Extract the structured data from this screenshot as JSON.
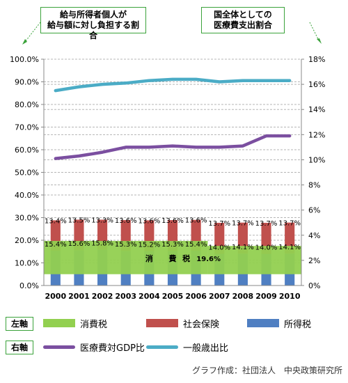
{
  "callouts": {
    "left": [
      "給与所得者個人が",
      "給与額に対し負担する割合"
    ],
    "right": [
      "国全体としての",
      "医療費支出割合"
    ]
  },
  "legend": {
    "left_tag": "左軸",
    "right_tag": "右軸",
    "items": {
      "consumption": "消費税",
      "social": "社会保険",
      "income": "所得税",
      "gdp": "医療費対GDP比",
      "general": "一般歳出比"
    }
  },
  "credit": "グラフ作成：社団法人　中央政策研究所",
  "chart_data": {
    "type": "bar",
    "stacked": true,
    "categories": [
      "2000",
      "2001",
      "2002",
      "2003",
      "2004",
      "2005",
      "2006",
      "2007",
      "2008",
      "2009",
      "2010"
    ],
    "left_axis": {
      "min": 0,
      "max": 100,
      "step": 10,
      "ticks": [
        "0.0%",
        "10.0%",
        "20.0%",
        "30.0%",
        "40.0%",
        "50.0%",
        "60.0%",
        "70.0%",
        "80.0%",
        "90.0%",
        "100.0%"
      ]
    },
    "right_axis": {
      "min": 0,
      "max": 18,
      "step": 2,
      "ticks": [
        "0%",
        "2%",
        "4%",
        "6%",
        "8%",
        "10%",
        "12%",
        "14%",
        "16%",
        "18%"
      ]
    },
    "bar_series": [
      {
        "name": "所得税",
        "color": "#4f7fc2",
        "values": [
          15.4,
          15.6,
          15.8,
          15.3,
          15.2,
          15.3,
          15.4,
          14.0,
          14.1,
          14.0,
          14.1
        ],
        "labels": [
          "15.4%",
          "15.6%",
          "15.8%",
          "15.3%",
          "15.2%",
          "15.3%",
          "15.4%",
          "14.0%",
          "14.1%",
          "14.0%",
          "14.1%"
        ]
      },
      {
        "name": "社会保険",
        "color": "#c0504d",
        "values": [
          13.4,
          13.5,
          13.3,
          13.6,
          13.6,
          13.6,
          13.6,
          13.7,
          13.7,
          13.7,
          13.7
        ],
        "labels": [
          "13.4%",
          "13.5%",
          "13.3%",
          "13.6%",
          "13.6%",
          "13.6%",
          "13.6%",
          "13.7%",
          "13.7%",
          "13.7%",
          "13.7%"
        ]
      }
    ],
    "consumption_band": {
      "name": "消費税",
      "color": "#92d050",
      "from_2000": [
        5,
        19.7
      ],
      "from_2007": [
        5,
        17.5
      ],
      "text": [
        "消",
        "費",
        "税"
      ],
      "value_label": "19.6%"
    },
    "line_series": [
      {
        "name": "医療費対GDP比",
        "color": "#7b4fa0",
        "values": [
          10.1,
          10.3,
          10.6,
          11.0,
          11.0,
          11.1,
          11.0,
          11.0,
          11.1,
          11.9,
          11.9
        ]
      },
      {
        "name": "一般歳出比",
        "color": "#4bacc6",
        "values": [
          15.5,
          15.8,
          16.0,
          16.1,
          16.3,
          16.4,
          16.4,
          16.2,
          16.3,
          16.3,
          16.3
        ]
      }
    ],
    "grid": true
  }
}
